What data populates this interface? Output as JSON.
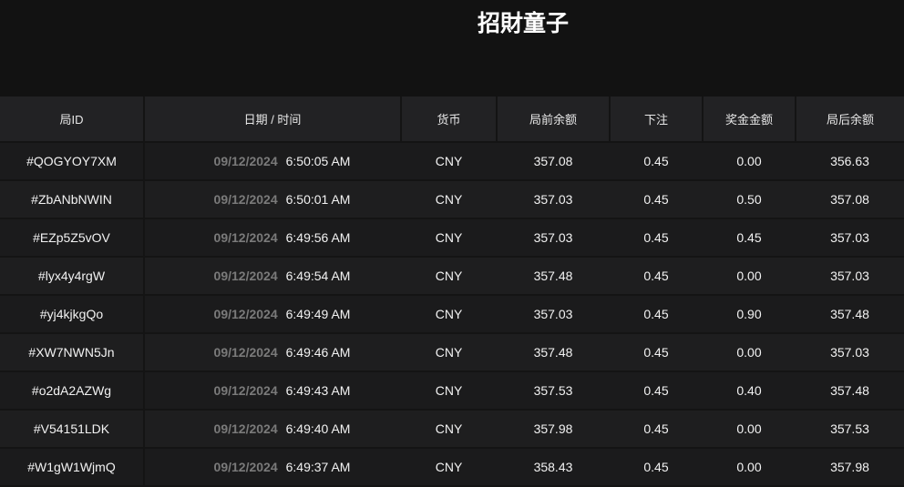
{
  "title": "招財童子",
  "headers": [
    "局ID",
    "日期 / 时间",
    "货币",
    "局前余额",
    "下注",
    "奖金金额",
    "局后余额"
  ],
  "rows": [
    {
      "id": "#QOGYOY7XM",
      "date": "09/12/2024",
      "time": "6:50:05 AM",
      "currency": "CNY",
      "before": "357.08",
      "bet": "0.45",
      "win": "0.00",
      "after": "356.63"
    },
    {
      "id": "#ZbANbNWIN",
      "date": "09/12/2024",
      "time": "6:50:01 AM",
      "currency": "CNY",
      "before": "357.03",
      "bet": "0.45",
      "win": "0.50",
      "after": "357.08"
    },
    {
      "id": "#EZp5Z5vOV",
      "date": "09/12/2024",
      "time": "6:49:56 AM",
      "currency": "CNY",
      "before": "357.03",
      "bet": "0.45",
      "win": "0.45",
      "after": "357.03"
    },
    {
      "id": "#lyx4y4rgW",
      "date": "09/12/2024",
      "time": "6:49:54 AM",
      "currency": "CNY",
      "before": "357.48",
      "bet": "0.45",
      "win": "0.00",
      "after": "357.03"
    },
    {
      "id": "#yj4kjkgQo",
      "date": "09/12/2024",
      "time": "6:49:49 AM",
      "currency": "CNY",
      "before": "357.03",
      "bet": "0.45",
      "win": "0.90",
      "after": "357.48"
    },
    {
      "id": "#XW7NWN5Jn",
      "date": "09/12/2024",
      "time": "6:49:46 AM",
      "currency": "CNY",
      "before": "357.48",
      "bet": "0.45",
      "win": "0.00",
      "after": "357.03"
    },
    {
      "id": "#o2dA2AZWg",
      "date": "09/12/2024",
      "time": "6:49:43 AM",
      "currency": "CNY",
      "before": "357.53",
      "bet": "0.45",
      "win": "0.40",
      "after": "357.48"
    },
    {
      "id": "#V54151LDK",
      "date": "09/12/2024",
      "time": "6:49:40 AM",
      "currency": "CNY",
      "before": "357.98",
      "bet": "0.45",
      "win": "0.00",
      "after": "357.53"
    },
    {
      "id": "#W1gW1WjmQ",
      "date": "09/12/2024",
      "time": "6:49:37 AM",
      "currency": "CNY",
      "before": "358.43",
      "bet": "0.45",
      "win": "0.00",
      "after": "357.98"
    }
  ]
}
